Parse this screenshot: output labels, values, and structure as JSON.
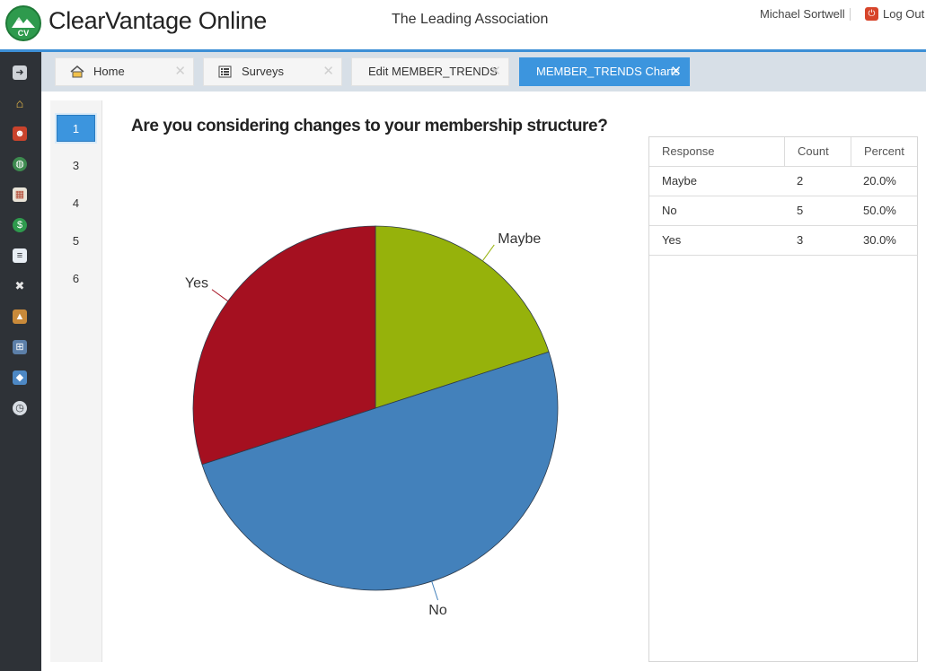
{
  "app": {
    "name": "ClearVantage Online",
    "logo_text": "CV",
    "organization": "The Leading Association",
    "user": "Michael Sortwell",
    "logout_label": "Log Out"
  },
  "rail": {
    "icons": [
      "arrow-right-icon",
      "home-icon",
      "members-icon",
      "globe-icon",
      "calendar-icon",
      "dollar-icon",
      "document-icon",
      "tools-icon",
      "building-icon",
      "cart-icon",
      "tag-icon",
      "clock-icon"
    ]
  },
  "tabs": [
    {
      "label": "Home",
      "icon": "home-icon",
      "active": false
    },
    {
      "label": "Surveys",
      "icon": "list-icon",
      "active": false
    },
    {
      "label": "Edit MEMBER_TRENDS",
      "active": false
    },
    {
      "label": "MEMBER_TRENDS Charts",
      "active": true
    }
  ],
  "tab_close_glyph": "✕",
  "pagenav": {
    "items": [
      "1",
      "3",
      "4",
      "5",
      "6"
    ],
    "selected": "1"
  },
  "question": "Are you considering changes to your membership structure?",
  "chart_data": {
    "type": "pie",
    "title": "",
    "slices": [
      {
        "label": "Maybe",
        "value": 2,
        "percent": 20.0,
        "color": "#96b20b"
      },
      {
        "label": "No",
        "value": 5,
        "percent": 50.0,
        "color": "#4381bb"
      },
      {
        "label": "Yes",
        "value": 3,
        "percent": 30.0,
        "color": "#a51020"
      }
    ]
  },
  "table": {
    "headers": [
      "Response",
      "Count",
      "Percent"
    ],
    "rows": [
      [
        "Maybe",
        "2",
        "20.0%"
      ],
      [
        "No",
        "5",
        "50.0%"
      ],
      [
        "Yes",
        "3",
        "30.0%"
      ]
    ]
  },
  "colors": {
    "accent": "#3c95de",
    "rail": "#2e3237",
    "tabbar": "#d7dfe7"
  }
}
